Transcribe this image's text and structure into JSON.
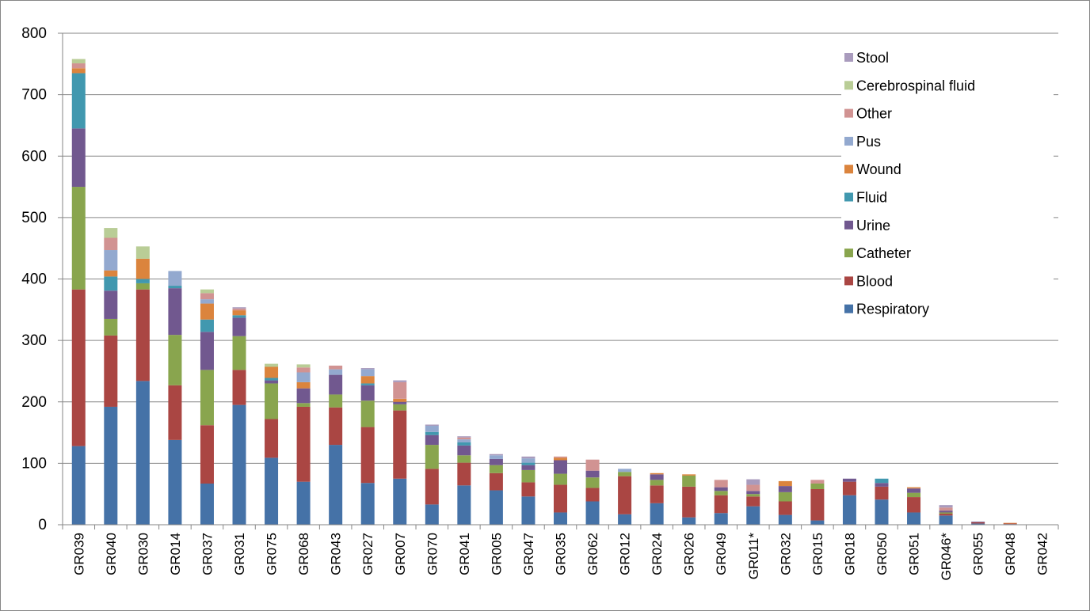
{
  "chart_data": {
    "type": "bar",
    "stacked": true,
    "title": "",
    "xlabel": "",
    "ylabel": "",
    "ylim": [
      0,
      800
    ],
    "yticks": [
      0,
      100,
      200,
      300,
      400,
      500,
      600,
      700,
      800
    ],
    "grid": true,
    "legend_position": "top-right",
    "categories": [
      "GR039",
      "GR040",
      "GR030",
      "GR014",
      "GR037",
      "GR031",
      "GR075",
      "GR068",
      "GR043",
      "GR027",
      "GR007",
      "GR070",
      "GR041",
      "GR005",
      "GR047",
      "GR035",
      "GR062",
      "GR012",
      "GR024",
      "GR026",
      "GR049",
      "GR011*",
      "GR032",
      "GR015",
      "GR018",
      "GR050",
      "GR051",
      "GR046*",
      "GR055",
      "GR048",
      "GR042"
    ],
    "series": [
      {
        "name": "Respiratory",
        "color": "#4572A7",
        "values": [
          128,
          192,
          234,
          138,
          67,
          195,
          109,
          70,
          130,
          68,
          75,
          33,
          64,
          56,
          46,
          20,
          38,
          17,
          35,
          12,
          19,
          30,
          16,
          7,
          48,
          41,
          20,
          15,
          2,
          1,
          0
        ]
      },
      {
        "name": "Blood",
        "color": "#AA4643",
        "values": [
          255,
          116,
          149,
          89,
          95,
          57,
          63,
          122,
          61,
          91,
          111,
          58,
          37,
          28,
          23,
          45,
          22,
          62,
          29,
          50,
          29,
          16,
          22,
          51,
          22,
          21,
          25,
          3,
          2,
          1,
          0
        ]
      },
      {
        "name": "Catheter",
        "color": "#89A54E",
        "values": [
          167,
          27,
          10,
          82,
          90,
          55,
          58,
          6,
          21,
          43,
          10,
          39,
          12,
          13,
          20,
          18,
          17,
          7,
          9,
          18,
          7,
          4,
          15,
          9,
          0,
          0,
          7,
          2,
          0,
          0,
          0
        ]
      },
      {
        "name": "Urine",
        "color": "#71588F",
        "values": [
          95,
          46,
          0,
          76,
          62,
          30,
          5,
          24,
          32,
          25,
          4,
          16,
          16,
          10,
          8,
          22,
          11,
          0,
          9,
          0,
          6,
          5,
          10,
          0,
          5,
          6,
          7,
          3,
          1,
          0,
          0
        ]
      },
      {
        "name": "Fluid",
        "color": "#4198AF",
        "values": [
          90,
          23,
          7,
          4,
          20,
          4,
          4,
          0,
          0,
          3,
          0,
          5,
          5,
          0,
          4,
          0,
          0,
          0,
          0,
          0,
          0,
          0,
          0,
          0,
          0,
          7,
          0,
          0,
          0,
          0,
          0
        ]
      },
      {
        "name": "Wound",
        "color": "#DB843D",
        "values": [
          8,
          10,
          33,
          0,
          26,
          8,
          18,
          10,
          0,
          12,
          5,
          0,
          0,
          0,
          0,
          4,
          0,
          0,
          2,
          2,
          0,
          0,
          8,
          0,
          0,
          0,
          2,
          0,
          0,
          1,
          0
        ]
      },
      {
        "name": "Pus",
        "color": "#93A9CF",
        "values": [
          0,
          33,
          0,
          24,
          7,
          0,
          0,
          16,
          9,
          11,
          0,
          10,
          5,
          6,
          7,
          0,
          0,
          5,
          0,
          0,
          0,
          0,
          0,
          0,
          0,
          0,
          0,
          0,
          0,
          0,
          0
        ]
      },
      {
        "name": "Other",
        "color": "#D19392",
        "values": [
          8,
          20,
          0,
          0,
          10,
          3,
          0,
          8,
          6,
          0,
          27,
          0,
          3,
          0,
          0,
          2,
          18,
          0,
          0,
          0,
          12,
          10,
          0,
          6,
          0,
          0,
          0,
          5,
          0,
          0,
          0
        ]
      },
      {
        "name": "Cerebrospinal fluid",
        "color": "#B9CD96",
        "values": [
          7,
          16,
          20,
          0,
          6,
          0,
          5,
          5,
          0,
          0,
          0,
          0,
          0,
          0,
          0,
          0,
          0,
          0,
          0,
          0,
          0,
          0,
          0,
          0,
          0,
          0,
          0,
          0,
          0,
          0,
          0
        ]
      },
      {
        "name": "Stool",
        "color": "#A99BBD",
        "values": [
          0,
          0,
          0,
          0,
          0,
          2,
          0,
          0,
          0,
          2,
          3,
          2,
          2,
          2,
          3,
          0,
          0,
          0,
          0,
          0,
          0,
          9,
          0,
          0,
          0,
          0,
          0,
          4,
          0,
          0,
          0
        ]
      }
    ]
  }
}
